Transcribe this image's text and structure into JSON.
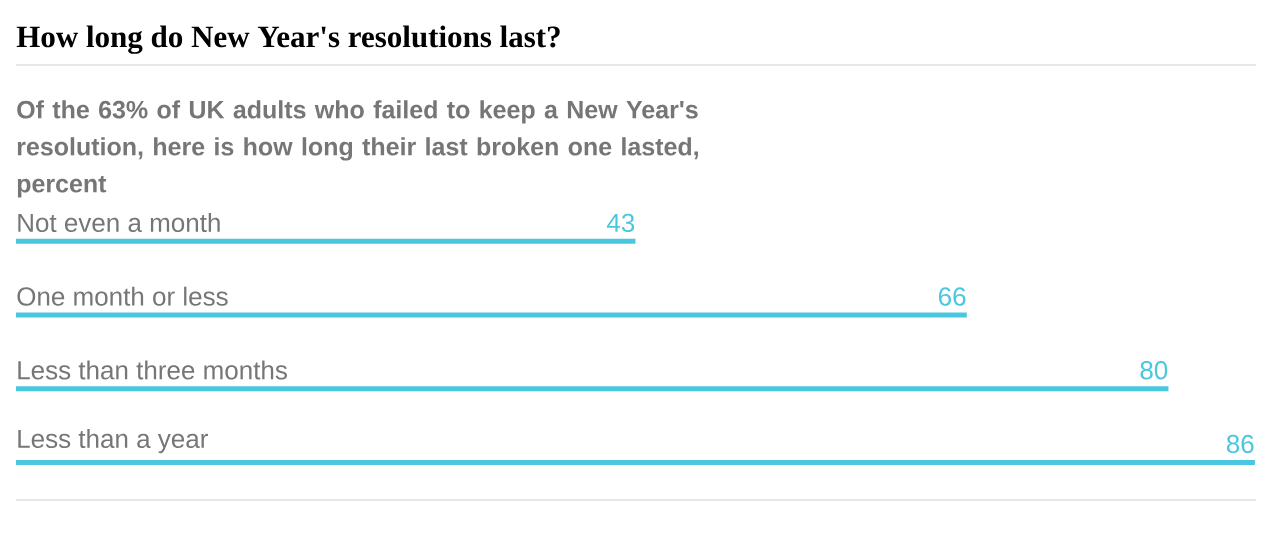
{
  "chart_data": {
    "type": "bar",
    "orientation": "horizontal",
    "title": "How long do New Year's resolutions last?",
    "subtitle": "Of the 63% of UK adults who failed to keep a New Year's resolution, here is how long their last broken one lasted, percent",
    "categories": [
      "Not even a month",
      "One month or less",
      "Less than three months",
      "Less than a year"
    ],
    "values": [
      43,
      66,
      80,
      86
    ],
    "color": "#4bc6df",
    "xlim": [
      0,
      86
    ],
    "data_labels": true
  }
}
